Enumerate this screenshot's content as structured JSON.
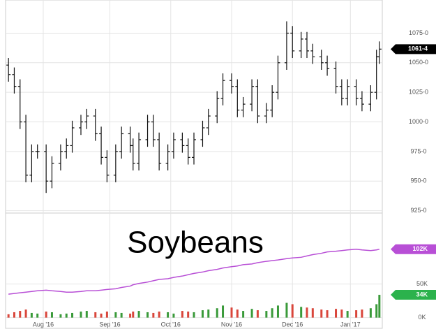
{
  "chart_data": {
    "type": "ohlc",
    "watermark": "Soybeans",
    "x": [
      -12,
      -10,
      -8,
      -6,
      -4,
      -2,
      1,
      3,
      6,
      8,
      10,
      13,
      15,
      18,
      20,
      22,
      25,
      27,
      30,
      31,
      33,
      36,
      38,
      40,
      43,
      45,
      48,
      50,
      52,
      55,
      57,
      60,
      62,
      65,
      67,
      69,
      72,
      74,
      77,
      79,
      81,
      84,
      86,
      89,
      91,
      93,
      96,
      98,
      101,
      103,
      105,
      108,
      110,
      113,
      115,
      116
    ],
    "xlim": [
      -13,
      117
    ],
    "xticks": [
      {
        "value": 0,
        "label": "Aug '16"
      },
      {
        "value": 23,
        "label": "Sep '16"
      },
      {
        "value": 44,
        "label": "Oct '16"
      },
      {
        "value": 65,
        "label": "Nov '16"
      },
      {
        "value": 86,
        "label": "Dec '16"
      },
      {
        "value": 106,
        "label": "Jan '17"
      }
    ],
    "price": {
      "color": "#111111",
      "open": [
        1048,
        1040,
        1030,
        1000,
        955,
        975,
        975,
        950,
        965,
        975,
        980,
        995,
        1000,
        1005,
        990,
        970,
        955,
        975,
        990,
        980,
        965,
        985,
        1000,
        985,
        965,
        975,
        985,
        980,
        970,
        985,
        995,
        1005,
        1020,
        1035,
        1030,
        1010,
        1015,
        1030,
        1005,
        1010,
        1025,
        1050,
        1075,
        1060,
        1070,
        1060,
        1055,
        1050,
        1045,
        1030,
        1020,
        1030,
        1020,
        1015,
        1025,
        1055
      ],
      "high": [
        1054,
        1046,
        1036,
        1006,
        981,
        981,
        981,
        971,
        981,
        986,
        1001,
        1006,
        1011,
        1011,
        996,
        976,
        981,
        996,
        996,
        986,
        991,
        1006,
        1006,
        991,
        981,
        991,
        991,
        986,
        991,
        1001,
        1011,
        1026,
        1041,
        1041,
        1036,
        1021,
        1036,
        1036,
        1016,
        1031,
        1056,
        1085,
        1081,
        1076,
        1076,
        1066,
        1061,
        1056,
        1051,
        1036,
        1036,
        1036,
        1026,
        1031,
        1061,
        1068
      ],
      "low": [
        1034,
        1024,
        994,
        949,
        949,
        969,
        940,
        944,
        959,
        969,
        974,
        989,
        994,
        984,
        964,
        949,
        949,
        969,
        974,
        959,
        959,
        979,
        979,
        959,
        959,
        969,
        974,
        964,
        964,
        979,
        989,
        999,
        1014,
        1024,
        1004,
        1004,
        1009,
        999,
        999,
        1004,
        1019,
        1044,
        1054,
        1054,
        1054,
        1049,
        1044,
        1039,
        1024,
        1014,
        1014,
        1014,
        1009,
        1009,
        1019,
        1049
      ],
      "close": [
        1040,
        1030,
        1000,
        955,
        975,
        975,
        950,
        965,
        975,
        980,
        995,
        1000,
        1005,
        990,
        970,
        955,
        975,
        990,
        980,
        965,
        985,
        1000,
        985,
        965,
        975,
        985,
        980,
        970,
        985,
        995,
        1005,
        1020,
        1035,
        1030,
        1010,
        1015,
        1030,
        1005,
        1010,
        1025,
        1050,
        1075,
        1060,
        1070,
        1060,
        1055,
        1050,
        1045,
        1030,
        1020,
        1030,
        1020,
        1015,
        1025,
        1055,
        1061.5
      ]
    },
    "ylim": [
      923,
      1103
    ],
    "yticks": [
      {
        "value": 925,
        "label": "925-0"
      },
      {
        "value": 950,
        "label": "950-0"
      },
      {
        "value": 975,
        "label": "975-0"
      },
      {
        "value": 1000,
        "label": "1000-0"
      },
      {
        "value": 1025,
        "label": "1025-0"
      },
      {
        "value": 1050,
        "label": "1050-0"
      },
      {
        "value": 1075,
        "label": "1075-0"
      }
    ],
    "volume": {
      "up_color": "#3a9a3a",
      "down_color": "#d9463b",
      "values": [
        5000,
        8000,
        10000,
        12000,
        7000,
        6000,
        9000,
        8000,
        5000,
        6000,
        7000,
        9000,
        10000,
        8000,
        6000,
        9000,
        8000,
        7000,
        6000,
        9000,
        10000,
        8000,
        7000,
        9000,
        8000,
        6000,
        10000,
        9000,
        8000,
        11000,
        12000,
        14000,
        18000,
        15000,
        12000,
        10000,
        13000,
        11000,
        10000,
        14000,
        18000,
        22000,
        20000,
        16000,
        15000,
        14000,
        12000,
        11000,
        13000,
        12000,
        10000,
        11000,
        12000,
        14000,
        20000,
        34000
      ]
    },
    "open_interest": {
      "color": "#b84fd6",
      "values": [
        35000,
        36000,
        37000,
        38000,
        39000,
        40000,
        41000,
        40000,
        39000,
        38000,
        38000,
        39000,
        40000,
        40000,
        41000,
        42000,
        43000,
        45000,
        47000,
        49000,
        51000,
        53000,
        55000,
        57000,
        58000,
        60000,
        62000,
        64000,
        66000,
        68000,
        70000,
        72000,
        74000,
        76000,
        77000,
        79000,
        80000,
        82000,
        84000,
        85000,
        86000,
        88000,
        89000,
        90000,
        92000,
        94000,
        96000,
        98000,
        99000,
        100000,
        101000,
        102000,
        101000,
        100000,
        101000,
        102000
      ]
    },
    "y2lim": [
      -16000,
      156000
    ],
    "y2ticks": [
      {
        "value": 0,
        "label": "0K"
      },
      {
        "value": 50000,
        "label": "50K"
      }
    ],
    "badges": [
      {
        "value": 1061.5,
        "label": "1061-4",
        "color": "#000000",
        "axis": "y"
      },
      {
        "value": 102000,
        "label": "102K",
        "color": "#b84fd6",
        "axis": "y2"
      },
      {
        "value": 34000,
        "label": "34K",
        "color": "#2bb24c",
        "axis": "y2"
      }
    ],
    "grid": true
  }
}
